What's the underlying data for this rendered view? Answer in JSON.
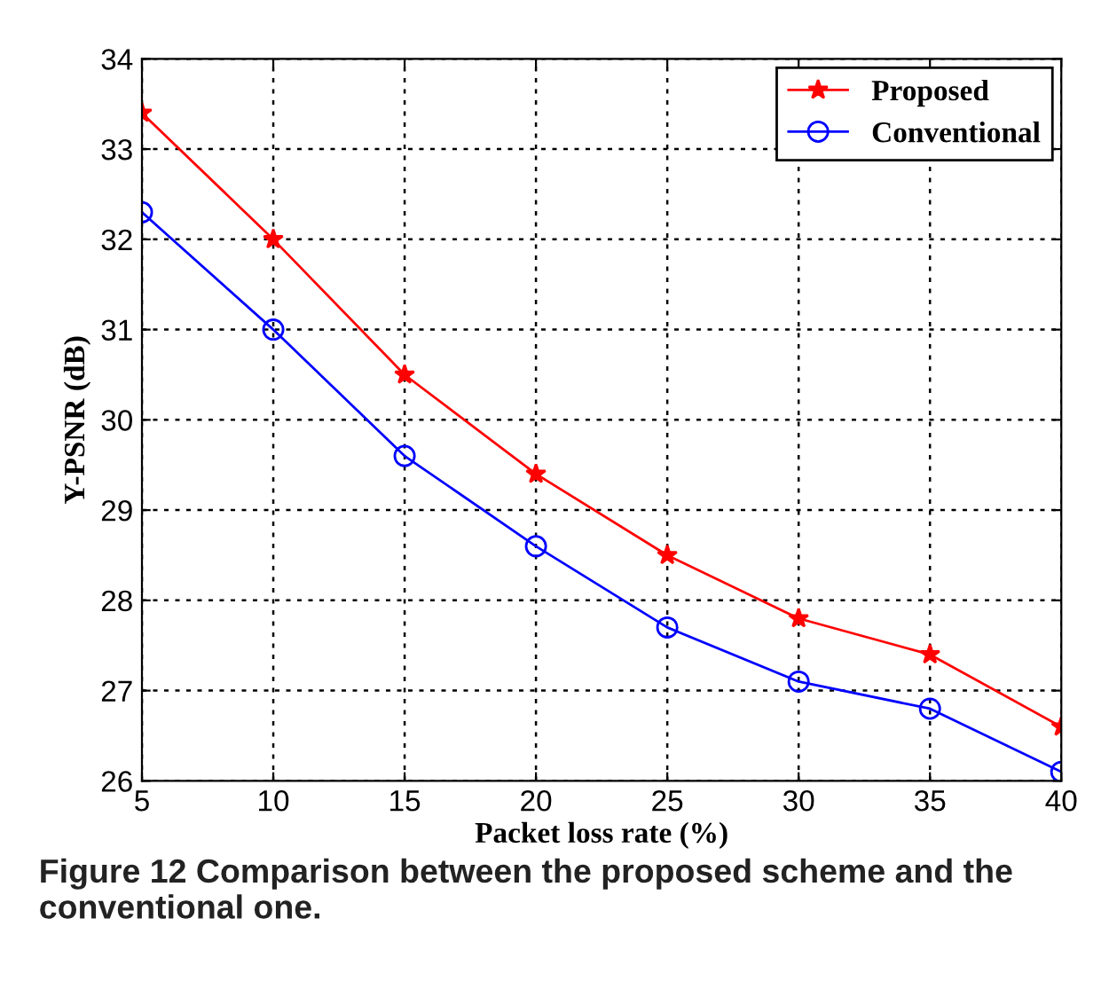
{
  "chart_data": {
    "type": "line",
    "xlabel": "Packet loss rate (%)",
    "ylabel": "Y-PSNR (dB)",
    "x": [
      5,
      10,
      15,
      20,
      25,
      30,
      35,
      40
    ],
    "series": [
      {
        "name": "Proposed",
        "color": "#ff0000",
        "marker": "star",
        "values": [
          33.4,
          32.0,
          30.5,
          29.4,
          28.5,
          27.8,
          27.4,
          26.6
        ]
      },
      {
        "name": "Conventional",
        "color": "#0000ff",
        "marker": "circle",
        "values": [
          32.3,
          31.0,
          29.6,
          28.6,
          27.7,
          27.1,
          26.8,
          26.1
        ]
      }
    ],
    "xlim": [
      5,
      40
    ],
    "xticks": [
      5,
      10,
      15,
      20,
      25,
      30,
      35,
      40
    ],
    "ylim": [
      26,
      34
    ],
    "yticks": [
      26,
      27,
      28,
      29,
      30,
      31,
      32,
      33,
      34
    ],
    "grid": true,
    "legend": "top right",
    "line_style": "solid",
    "annotations": [
      "Figure 12 Comparison between the proposed scheme and the conventional one."
    ]
  }
}
